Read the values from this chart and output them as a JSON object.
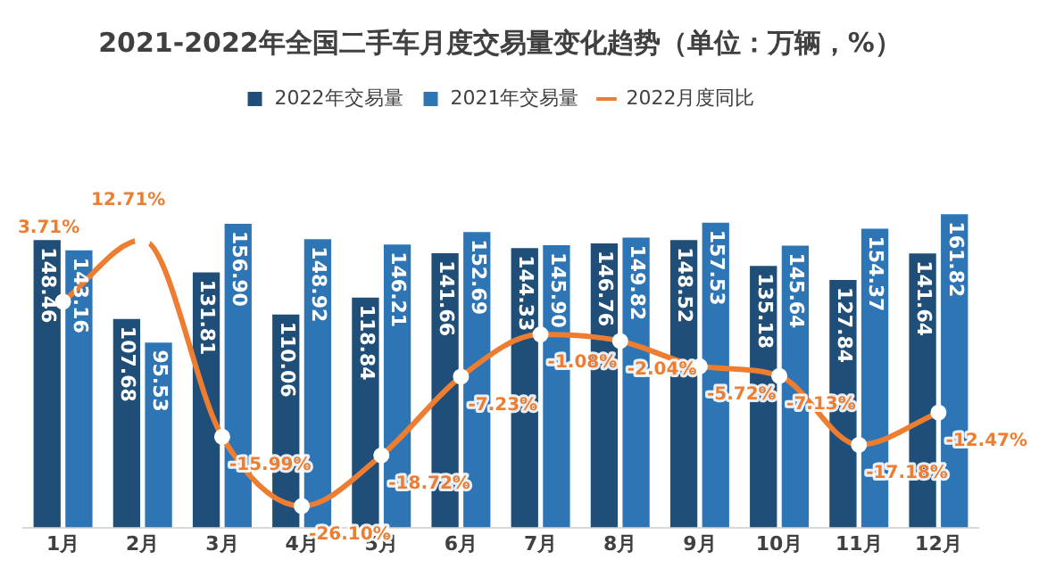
{
  "chart_data": {
    "type": "bar",
    "title": "2021-2022年全国二手车月度交易量变化趋势（单位：万辆，%）",
    "categories": [
      "1月",
      "2月",
      "3月",
      "4月",
      "5月",
      "6月",
      "7月",
      "8月",
      "9月",
      "10月",
      "11月",
      "12月"
    ],
    "series": [
      {
        "name": "2022年交易量",
        "color": "#1f4e79",
        "value_labels": [
          "148.46",
          "107.68",
          "131.81",
          "110.06",
          "118.84",
          "141.66",
          "144.33",
          "146.76",
          "148.52",
          "135.18",
          "127.84",
          "141.64"
        ],
        "values": [
          148.46,
          107.68,
          131.81,
          110.06,
          118.84,
          141.66,
          144.33,
          146.76,
          148.52,
          135.18,
          127.84,
          141.64
        ]
      },
      {
        "name": "2021年交易量",
        "color": "#2e75b6",
        "value_labels": [
          "143.16",
          "95.53",
          "156.90",
          "148.92",
          "146.21",
          "152.69",
          "145.90",
          "149.82",
          "157.53",
          "145.64",
          "154.37",
          "161.82"
        ],
        "values": [
          143.16,
          95.53,
          156.9,
          148.92,
          146.21,
          152.69,
          145.9,
          149.82,
          157.53,
          145.64,
          154.37,
          161.82
        ]
      },
      {
        "name": "2022月度同比",
        "type": "line",
        "axis": "y2",
        "color": "#ed7d31",
        "marker": "circle",
        "value_labels": [
          "3.71%",
          "12.71%",
          "-15.99%",
          "-26.10%",
          "-18.72%",
          "-7.23%",
          "-1.08%",
          "-2.04%",
          "-5.72%",
          "-7.13%",
          "-17.18%",
          "-12.47%"
        ],
        "values": [
          3.71,
          12.71,
          -15.99,
          -26.1,
          -18.72,
          -7.23,
          -1.08,
          -2.04,
          -5.72,
          -7.13,
          -17.18,
          -12.47
        ]
      }
    ],
    "legend": "top",
    "grid": false
  }
}
